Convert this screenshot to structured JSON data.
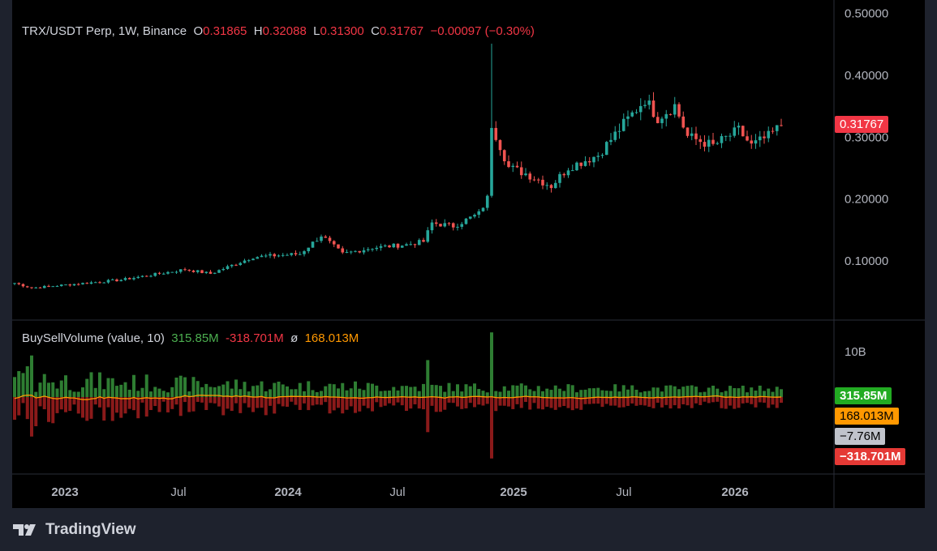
{
  "legend": {
    "symbol": "TRX/USDT Perp, 1W, Binance",
    "o_label": "O",
    "o": "0.31865",
    "h_label": "H",
    "h": "0.32088",
    "l_label": "L",
    "l": "0.31300",
    "c_label": "C",
    "c": "0.31767",
    "change": "−0.00097 (−0.30%)"
  },
  "indicator": {
    "name": "BuySellVolume (value, 10)",
    "buy": "315.85M",
    "sell": "-318.701M",
    "sym": "ø",
    "ma": "168.013M"
  },
  "tags": {
    "price": "0.31767",
    "buy": "315.85M",
    "ma": "168.013M",
    "delta": "−7.76M",
    "sell": "−318.701M"
  },
  "brand": "TradingView",
  "colors": {
    "up": "#26a69a",
    "down": "#ef5350",
    "buy": "#2e7d32",
    "sell": "#8b1a1a",
    "ma": "#ff9800"
  },
  "chart_data": {
    "type": "candlestick",
    "title": "TRX/USDT Perp, 1W, Binance",
    "y_ticks": [
      "0.50000",
      "0.40000",
      "0.30000",
      "0.20000",
      "0.10000"
    ],
    "ylim": [
      0.0,
      0.5
    ],
    "x_ticks": [
      "2023",
      "Jul",
      "2024",
      "Jul",
      "2025",
      "Jul",
      "2026"
    ],
    "volume_tick": "10B",
    "weeks": 181,
    "close_keypoints": [
      [
        0,
        0.063
      ],
      [
        4,
        0.055
      ],
      [
        12,
        0.06
      ],
      [
        25,
        0.068
      ],
      [
        40,
        0.085
      ],
      [
        46,
        0.078
      ],
      [
        56,
        0.105
      ],
      [
        67,
        0.11
      ],
      [
        72,
        0.14
      ],
      [
        77,
        0.11
      ],
      [
        84,
        0.12
      ],
      [
        92,
        0.125
      ],
      [
        96,
        0.13
      ],
      [
        98,
        0.16
      ],
      [
        103,
        0.155
      ],
      [
        109,
        0.175
      ],
      [
        111,
        0.2
      ],
      [
        112,
        0.32
      ],
      [
        116,
        0.25
      ],
      [
        120,
        0.24
      ],
      [
        126,
        0.22
      ],
      [
        130,
        0.25
      ],
      [
        137,
        0.27
      ],
      [
        143,
        0.32
      ],
      [
        148,
        0.36
      ],
      [
        151,
        0.33
      ],
      [
        155,
        0.35
      ],
      [
        158,
        0.3
      ],
      [
        164,
        0.285
      ],
      [
        170,
        0.31
      ],
      [
        173,
        0.285
      ],
      [
        177,
        0.3
      ],
      [
        180,
        0.318
      ]
    ],
    "spike_high": {
      "week": 112,
      "value": 0.45
    },
    "volume_spikes": [
      [
        4,
        9
      ],
      [
        112,
        14
      ],
      [
        97,
        8
      ]
    ]
  }
}
